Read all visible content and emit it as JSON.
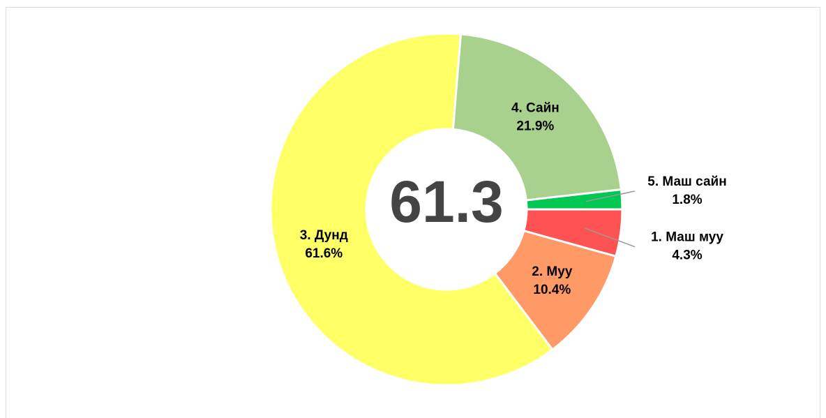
{
  "chart_data": {
    "type": "donut",
    "center_value": 61.3,
    "categories": [
      "1. Маш муу",
      "2. Муу",
      "3. Дунд",
      "4. Сайн",
      "5. Маш сайн"
    ],
    "values": [
      4.3,
      10.4,
      61.6,
      21.9,
      1.8
    ],
    "value_labels": [
      "4.3%",
      "10.4%",
      "61.6%",
      "21.9%",
      "1.8%"
    ],
    "colors": [
      "#ff5252",
      "#ff9966",
      "#ffff66",
      "#a9d18e",
      "#00c853"
    ]
  }
}
